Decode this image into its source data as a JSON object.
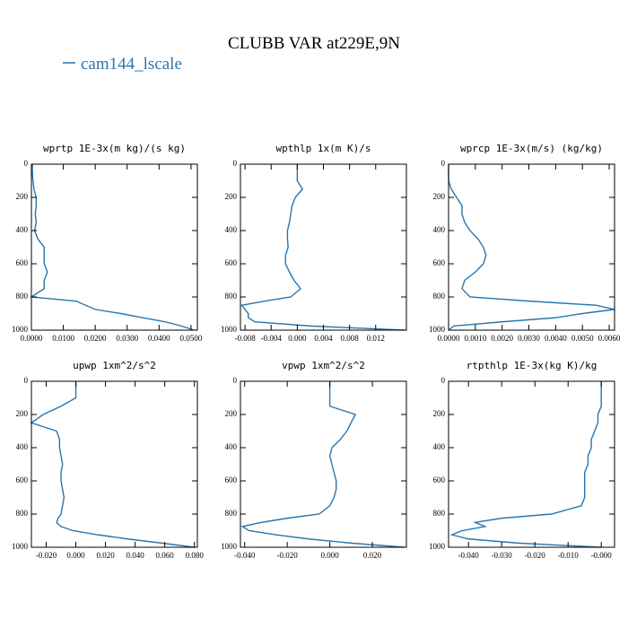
{
  "title": "CLUBB VAR at229E,9N",
  "chart_data": [
    {
      "type": "line",
      "title": "wprtp  1E-3x(m kg)/(s kg)",
      "xlim": [
        0,
        0.052
      ],
      "ylim": [
        1000,
        0
      ],
      "xticks": [
        {
          "value": 0,
          "label": "0.0000"
        },
        {
          "value": 0.01,
          "label": "0.0100"
        },
        {
          "value": 0.02,
          "label": "0.0200"
        },
        {
          "value": 0.03,
          "label": "0.0300"
        },
        {
          "value": 0.04,
          "label": "0.0400"
        },
        {
          "value": 0.05,
          "label": "0.0500"
        }
      ],
      "yticks": [
        0,
        200,
        400,
        600,
        800,
        1000
      ],
      "y": [
        0,
        50,
        100,
        150,
        200,
        250,
        300,
        350,
        400,
        450,
        500,
        550,
        600,
        650,
        700,
        750,
        800,
        825,
        850,
        875,
        900,
        925,
        950,
        975,
        1000
      ],
      "series": [
        {
          "name": "cam144_lscale",
          "color": "#2777b0",
          "values": [
            0.0003,
            0.0003,
            0.0005,
            0.0008,
            0.0015,
            0.0015,
            0.0012,
            0.0015,
            0.001,
            0.002,
            0.004,
            0.004,
            0.004,
            0.005,
            0.004,
            0.004,
            0.0,
            0.014,
            0.017,
            0.02,
            0.028,
            0.035,
            0.042,
            0.047,
            0.051
          ]
        }
      ]
    },
    {
      "type": "line",
      "title": "wpthlp  1x(m K)/s",
      "xlim": [
        -0.0087,
        0.0167
      ],
      "ylim": [
        1000,
        0
      ],
      "xticks": [
        {
          "value": -0.008,
          "label": "-0.008"
        },
        {
          "value": -0.004,
          "label": "-0.004"
        },
        {
          "value": 0,
          "label": "0.000"
        },
        {
          "value": 0.004,
          "label": "0.004"
        },
        {
          "value": 0.008,
          "label": "0.008"
        },
        {
          "value": 0.012,
          "label": "0.012"
        }
      ],
      "yticks": [
        0,
        200,
        400,
        600,
        800,
        1000
      ],
      "y": [
        0,
        50,
        100,
        150,
        200,
        250,
        300,
        350,
        400,
        450,
        500,
        550,
        600,
        650,
        700,
        750,
        800,
        825,
        850,
        875,
        900,
        925,
        950,
        975,
        1000
      ],
      "series": [
        {
          "name": "cam144_lscale",
          "color": "#2777b0",
          "values": [
            0,
            0,
            0,
            0.0008,
            -0.0003,
            -0.0008,
            -0.001,
            -0.0012,
            -0.0015,
            -0.0015,
            -0.0014,
            -0.0018,
            -0.0018,
            -0.0012,
            -0.0005,
            0.0005,
            -0.001,
            -0.005,
            -0.0085,
            -0.008,
            -0.0075,
            -0.0075,
            -0.0065,
            0.002,
            0.0165
          ]
        }
      ]
    },
    {
      "type": "line",
      "title": "wprcp  1E-3x(m/s) (kg/kg)",
      "xlim": [
        0,
        0.0062
      ],
      "ylim": [
        1000,
        0
      ],
      "xticks": [
        {
          "value": 0,
          "label": "0.0000"
        },
        {
          "value": 0.001,
          "label": "0.0010"
        },
        {
          "value": 0.002,
          "label": "0.0020"
        },
        {
          "value": 0.003,
          "label": "0.0030"
        },
        {
          "value": 0.004,
          "label": "0.0040"
        },
        {
          "value": 0.005,
          "label": "0.0050"
        },
        {
          "value": 0.006,
          "label": "0.0060"
        }
      ],
      "yticks": [
        0,
        200,
        400,
        600,
        800,
        1000
      ],
      "y": [
        0,
        50,
        100,
        150,
        200,
        250,
        300,
        350,
        400,
        450,
        500,
        550,
        600,
        650,
        700,
        750,
        800,
        825,
        850,
        875,
        900,
        925,
        950,
        975,
        1000
      ],
      "series": [
        {
          "name": "cam144_lscale",
          "color": "#2777b0",
          "values": [
            0,
            0,
            0,
            0.0001,
            0.0003,
            0.0005,
            0.0005,
            0.0006,
            0.0008,
            0.0011,
            0.0013,
            0.0014,
            0.0013,
            0.001,
            0.0006,
            0.0005,
            0.0008,
            0.003,
            0.0055,
            0.0062,
            0.005,
            0.004,
            0.002,
            0.0002,
            0
          ]
        }
      ]
    },
    {
      "type": "line",
      "title": "upwp  1xm^2/s^2",
      "xlim": [
        -0.03,
        0.082
      ],
      "ylim": [
        1000,
        0
      ],
      "xticks": [
        {
          "value": -0.02,
          "label": "-0.020"
        },
        {
          "value": 0,
          "label": "0.000"
        },
        {
          "value": 0.02,
          "label": "0.020"
        },
        {
          "value": 0.04,
          "label": "0.040"
        },
        {
          "value": 0.06,
          "label": "0.060"
        },
        {
          "value": 0.08,
          "label": "0.080"
        }
      ],
      "yticks": [
        0,
        200,
        400,
        600,
        800,
        1000
      ],
      "y": [
        0,
        50,
        100,
        150,
        200,
        250,
        300,
        350,
        400,
        450,
        500,
        550,
        600,
        650,
        700,
        750,
        800,
        825,
        850,
        875,
        900,
        925,
        950,
        975,
        1000
      ],
      "series": [
        {
          "name": "cam144_lscale",
          "color": "#2777b0",
          "values": [
            0,
            0,
            0,
            -0.01,
            -0.022,
            -0.03,
            -0.013,
            -0.011,
            -0.011,
            -0.01,
            -0.009,
            -0.01,
            -0.01,
            -0.009,
            -0.008,
            -0.009,
            -0.01,
            -0.012,
            -0.013,
            -0.01,
            -0.002,
            0.015,
            0.035,
            0.058,
            0.08
          ]
        }
      ]
    },
    {
      "type": "line",
      "title": "vpwp  1xm^2/s^2",
      "xlim": [
        -0.042,
        0.036
      ],
      "ylim": [
        1000,
        0
      ],
      "xticks": [
        {
          "value": -0.04,
          "label": "-0.040"
        },
        {
          "value": -0.02,
          "label": "-0.020"
        },
        {
          "value": 0,
          "label": "0.000"
        },
        {
          "value": 0.02,
          "label": "0.020"
        }
      ],
      "yticks": [
        0,
        200,
        400,
        600,
        800,
        1000
      ],
      "y": [
        0,
        50,
        100,
        150,
        200,
        250,
        300,
        350,
        400,
        450,
        500,
        550,
        600,
        650,
        700,
        750,
        800,
        825,
        850,
        875,
        900,
        925,
        950,
        975,
        1000
      ],
      "series": [
        {
          "name": "cam144_lscale",
          "color": "#2777b0",
          "values": [
            0,
            0,
            0,
            0,
            0.012,
            0.01,
            0.008,
            0.005,
            0.001,
            0,
            0.001,
            0.002,
            0.003,
            0.003,
            0.002,
            0,
            -0.005,
            -0.02,
            -0.032,
            -0.041,
            -0.038,
            -0.025,
            -0.01,
            0.01,
            0.035
          ]
        }
      ]
    },
    {
      "type": "line",
      "title": "rtpthlp  1E-3x(kg K)/kg",
      "xlim": [
        -0.046,
        0.004
      ],
      "ylim": [
        1000,
        0
      ],
      "xticks": [
        {
          "value": -0.04,
          "label": "-0.040"
        },
        {
          "value": -0.03,
          "label": "-0.030"
        },
        {
          "value": -0.02,
          "label": "-0.020"
        },
        {
          "value": -0.01,
          "label": "-0.010"
        },
        {
          "value": 0,
          "label": "-0.000"
        }
      ],
      "yticks": [
        0,
        200,
        400,
        600,
        800,
        1000
      ],
      "y": [
        0,
        50,
        100,
        150,
        200,
        250,
        300,
        350,
        400,
        450,
        500,
        550,
        600,
        650,
        700,
        750,
        800,
        825,
        850,
        875,
        900,
        925,
        950,
        975,
        1000
      ],
      "series": [
        {
          "name": "cam144_lscale",
          "color": "#2777b0",
          "values": [
            0,
            0,
            0,
            0,
            -0.001,
            -0.001,
            -0.002,
            -0.003,
            -0.003,
            -0.004,
            -0.004,
            -0.005,
            -0.005,
            -0.005,
            -0.005,
            -0.006,
            -0.015,
            -0.03,
            -0.038,
            -0.035,
            -0.042,
            -0.045,
            -0.04,
            -0.025,
            0
          ]
        }
      ]
    }
  ]
}
